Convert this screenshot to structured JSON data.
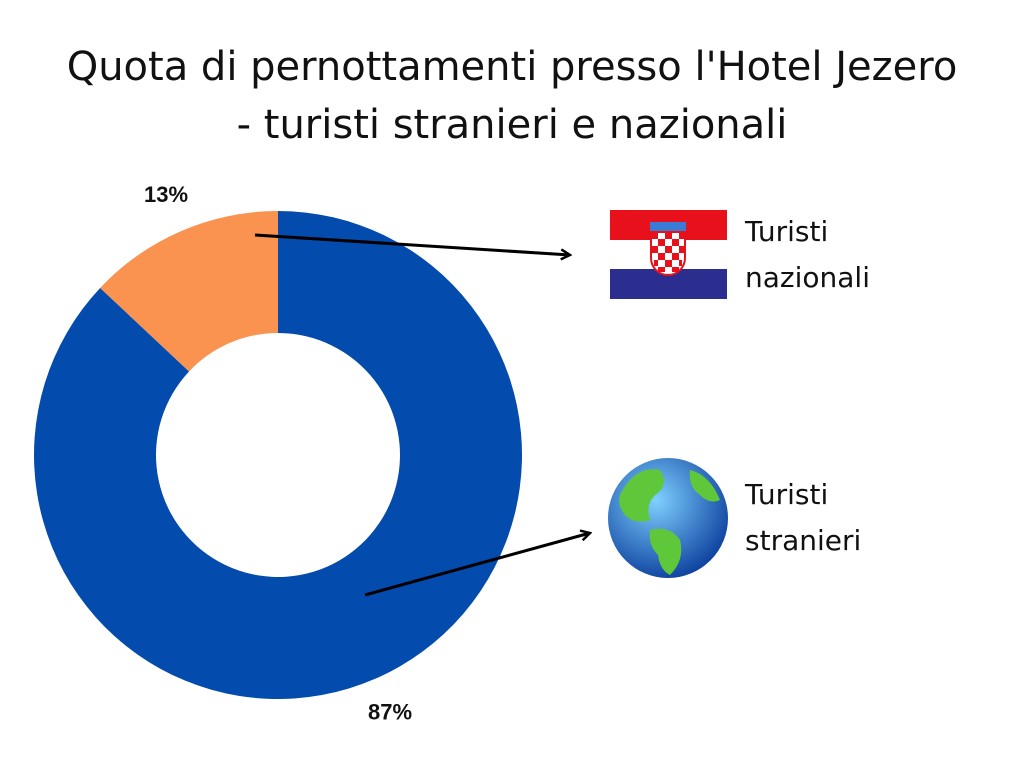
{
  "chart_data": {
    "type": "pie",
    "donut": true,
    "title": "Quota di pernottamenti presso l'Hotel Jezero - turisti stranieri e nazionali",
    "categories": [
      "Turisti stranieri",
      "Turisti nazionali"
    ],
    "values": [
      87,
      13
    ],
    "value_labels": [
      "87%",
      "13%"
    ],
    "colors": [
      "#034bad",
      "#fa9250"
    ]
  }
}
